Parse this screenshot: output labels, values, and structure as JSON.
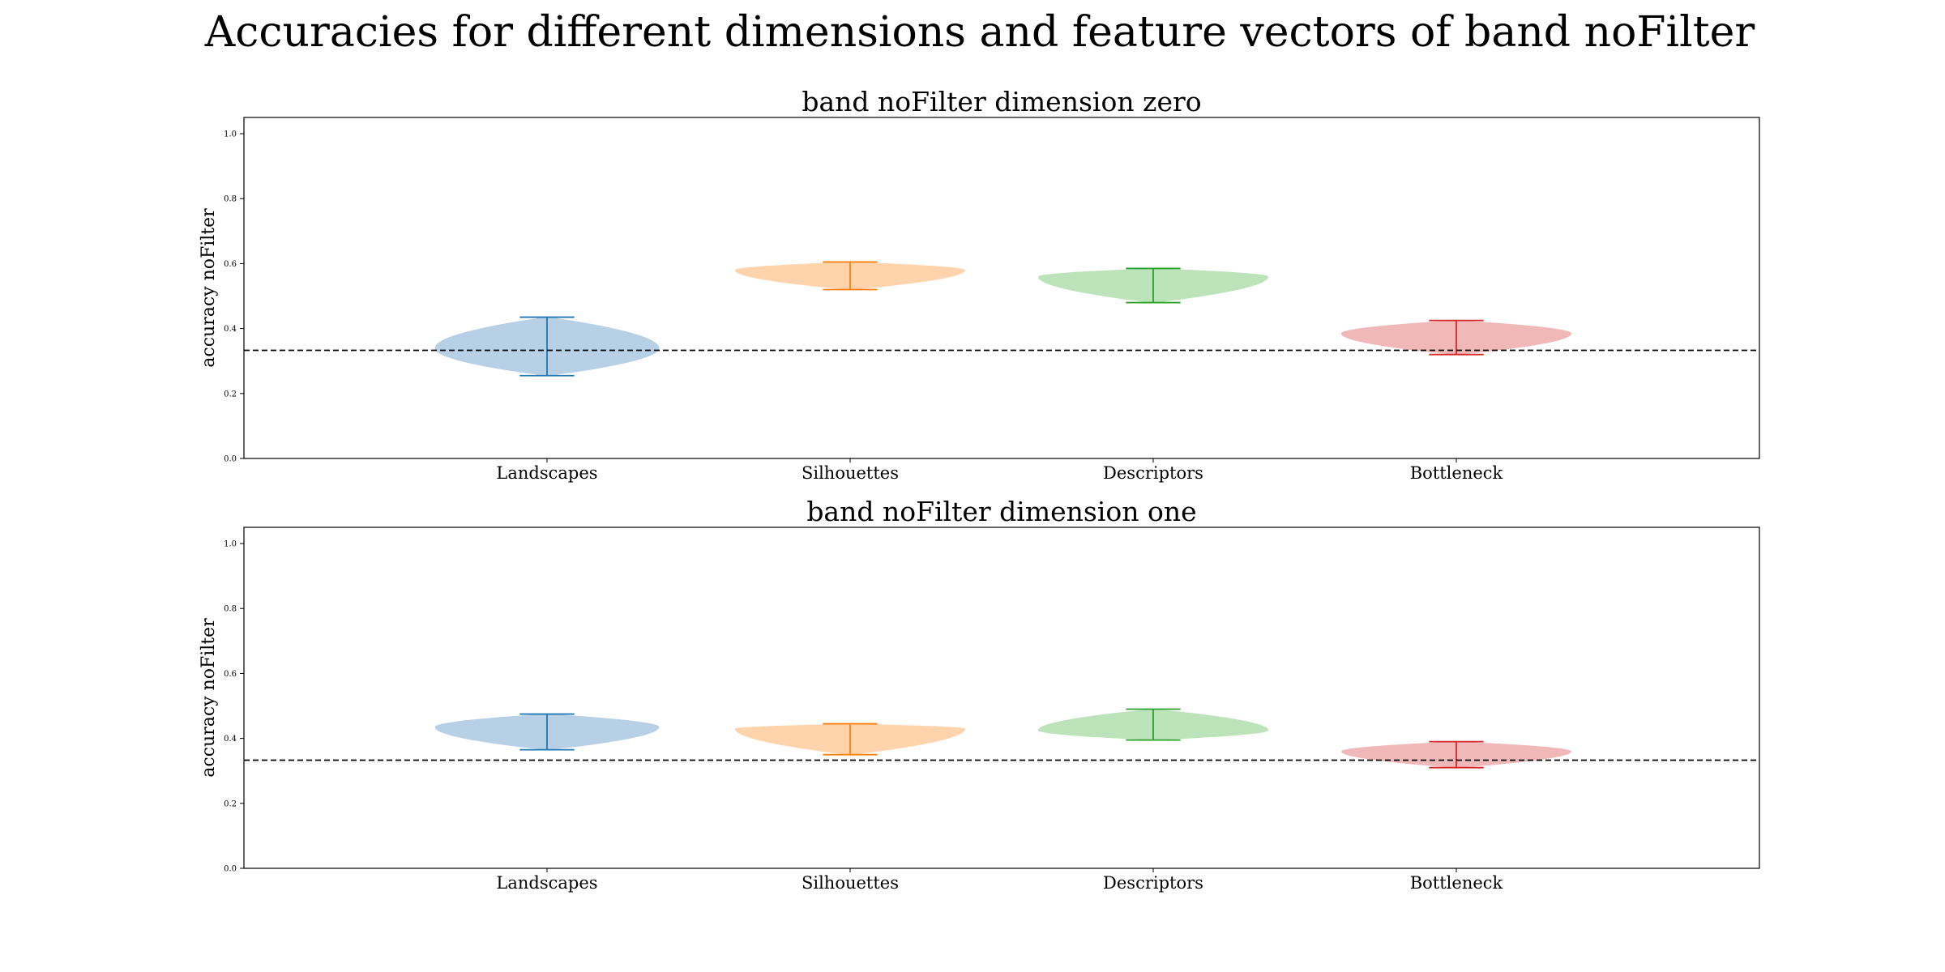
{
  "figure": {
    "suptitle": "Accuracies for different dimensions and feature vectors of band noFilter"
  },
  "colors": {
    "series": [
      "#1f77b4",
      "#ff7f0e",
      "#2ca02c",
      "#d62728"
    ],
    "fill": [
      "#b7d0e6",
      "#ffd3ac",
      "#bde3ba",
      "#f0b8b9"
    ],
    "reference_line": "#000000"
  },
  "chart_data": [
    {
      "type": "violin",
      "title": "band noFilter dimension zero",
      "ylabel": "accuracy noFilter",
      "xlabel": "",
      "categories": [
        "Landscapes",
        "Silhouettes",
        "Descriptors",
        "Bottleneck"
      ],
      "yticks": [
        "0.0",
        "0.2",
        "0.4",
        "0.6",
        "0.8",
        "1.0"
      ],
      "ylim": [
        0,
        1.05
      ],
      "reference_line": 0.333,
      "grid": false,
      "violins": [
        {
          "category": "Landscapes",
          "min": 0.255,
          "max": 0.435,
          "mode": 0.34,
          "max_half_width": 0.37
        },
        {
          "category": "Silhouettes",
          "min": 0.52,
          "max": 0.605,
          "mode": 0.58,
          "max_half_width": 0.38
        },
        {
          "category": "Descriptors",
          "min": 0.48,
          "max": 0.585,
          "mode": 0.56,
          "max_half_width": 0.38
        },
        {
          "category": "Bottleneck",
          "min": 0.32,
          "max": 0.425,
          "mode": 0.385,
          "max_half_width": 0.38
        }
      ]
    },
    {
      "type": "violin",
      "title": "band noFilter dimension one",
      "ylabel": "accuracy noFilter",
      "xlabel": "",
      "categories": [
        "Landscapes",
        "Silhouettes",
        "Descriptors",
        "Bottleneck"
      ],
      "yticks": [
        "0.0",
        "0.2",
        "0.4",
        "0.6",
        "0.8",
        "1.0"
      ],
      "ylim": [
        0,
        1.05
      ],
      "reference_line": 0.333,
      "grid": false,
      "violins": [
        {
          "category": "Landscapes",
          "min": 0.365,
          "max": 0.475,
          "mode": 0.435,
          "max_half_width": 0.37
        },
        {
          "category": "Silhouettes",
          "min": 0.35,
          "max": 0.445,
          "mode": 0.43,
          "max_half_width": 0.38
        },
        {
          "category": "Descriptors",
          "min": 0.395,
          "max": 0.49,
          "mode": 0.425,
          "max_half_width": 0.38
        },
        {
          "category": "Bottleneck",
          "min": 0.31,
          "max": 0.39,
          "mode": 0.36,
          "max_half_width": 0.38
        }
      ]
    }
  ]
}
